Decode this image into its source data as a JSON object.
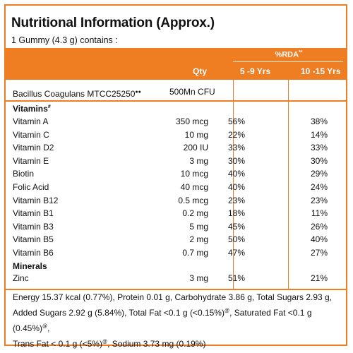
{
  "header": {
    "title": "Nutritional Information (Approx.)",
    "serving": "1 Gummy (4.3 g) contains :"
  },
  "columns": {
    "rda_group": "%RDA",
    "rda_group_mark": "**",
    "qty": "Qty",
    "age1": "5 -9 Yrs",
    "age2": "10 -15 Yrs"
  },
  "probiotic": {
    "name": "Bacillus Coagulans MTCC25250",
    "mark": "●●",
    "qty": "500Mn CFU"
  },
  "vitamins_heading": "Vitamins",
  "vitamins_heading_mark": "#",
  "vitamins": [
    {
      "name": "Vitamin A",
      "qty": "350 mcg",
      "rda1": "56%",
      "rda2": "38%"
    },
    {
      "name": "Vitamin C",
      "qty": "10 mg",
      "rda1": "22%",
      "rda2": "14%"
    },
    {
      "name": "Vitamin D2",
      "qty": "200 IU",
      "rda1": "33%",
      "rda2": "33%"
    },
    {
      "name": "Vitamin E",
      "qty": "3 mg",
      "rda1": "30%",
      "rda2": "30%"
    },
    {
      "name": "Biotin",
      "qty": "10 mcg",
      "rda1": "40%",
      "rda2": "29%"
    },
    {
      "name": "Folic Acid",
      "qty": "40 mcg",
      "rda1": "40%",
      "rda2": "24%"
    },
    {
      "name": "Vitamin B12",
      "qty": "0.5 mcg",
      "rda1": "23%",
      "rda2": "23%"
    },
    {
      "name": "Vitamin B1",
      "qty": "0.2 mg",
      "rda1": "18%",
      "rda2": "11%"
    },
    {
      "name": "Vitamin B3",
      "qty": "5 mg",
      "rda1": "45%",
      "rda2": "26%"
    },
    {
      "name": "Vitamin B5",
      "qty": "2 mg",
      "rda1": "50%",
      "rda2": "40%"
    },
    {
      "name": "Vitamin B6",
      "qty": "0.7 mg",
      "rda1": "47%",
      "rda2": "27%"
    }
  ],
  "minerals_heading": "Minerals",
  "minerals": [
    {
      "name": "Zinc",
      "qty": "3 mg",
      "rda1": "51%",
      "rda2": "21%"
    }
  ],
  "footer": {
    "line1": "Energy 15.37 kcal (0.77%), Protein 0.01 g, Carbohydrate 3.86 g, Total Sugars 2.93 g,",
    "line2": "Added Sugars 2.92 g (5.84%), Total Fat <0.1 g (<0.15%)",
    "line2b": ", Saturated Fat <0.1 g (0.45%)",
    "line2c": ",",
    "line3": "Trans Fat < 0.1 g (<5%)",
    "line3b": ", Sodium 3.73 mg (0.19%)",
    "mark": "@"
  },
  "colors": {
    "accent": "#ef7d22"
  }
}
